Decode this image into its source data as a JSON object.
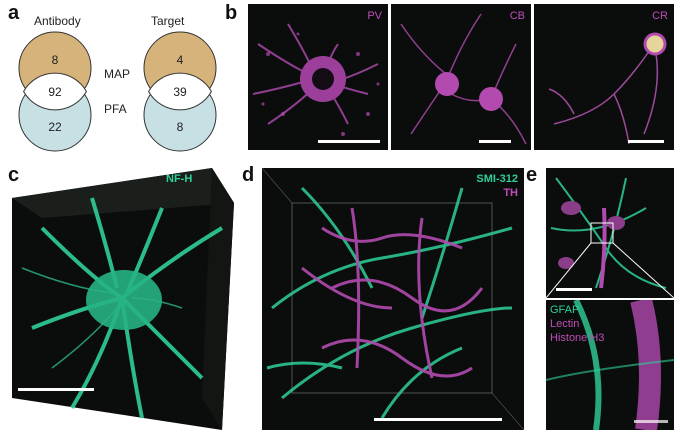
{
  "panels": {
    "a": "a",
    "b": "b",
    "c": "c",
    "d": "d",
    "e": "e"
  },
  "venn": {
    "left_title": "Antibody",
    "right_title": "Target",
    "method_top": "MAP",
    "method_bottom": "PFA",
    "antibody": {
      "map_only": "8",
      "both": "92",
      "pfa_only": "22"
    },
    "target": {
      "map_only": "4",
      "both": "39",
      "pfa_only": "8"
    },
    "colors": {
      "map": "#d6b37a",
      "pfa": "#c6e0e3",
      "both": "#ffffff",
      "edge": "#333333"
    }
  },
  "b_panels": [
    {
      "label": "PV"
    },
    {
      "label": "CB"
    },
    {
      "label": "CR"
    }
  ],
  "c_label": "NF-H",
  "d_labels": {
    "top": "SMI-312",
    "bottom": "TH"
  },
  "e_labels": {
    "l1": "GFAP",
    "l2": "Lectin",
    "l3": "Histone H3"
  },
  "colors": {
    "green": "#2fcf98",
    "magenta": "#b24ab0",
    "label_magenta": "#c04cb8",
    "background": "#0a0d0b"
  }
}
